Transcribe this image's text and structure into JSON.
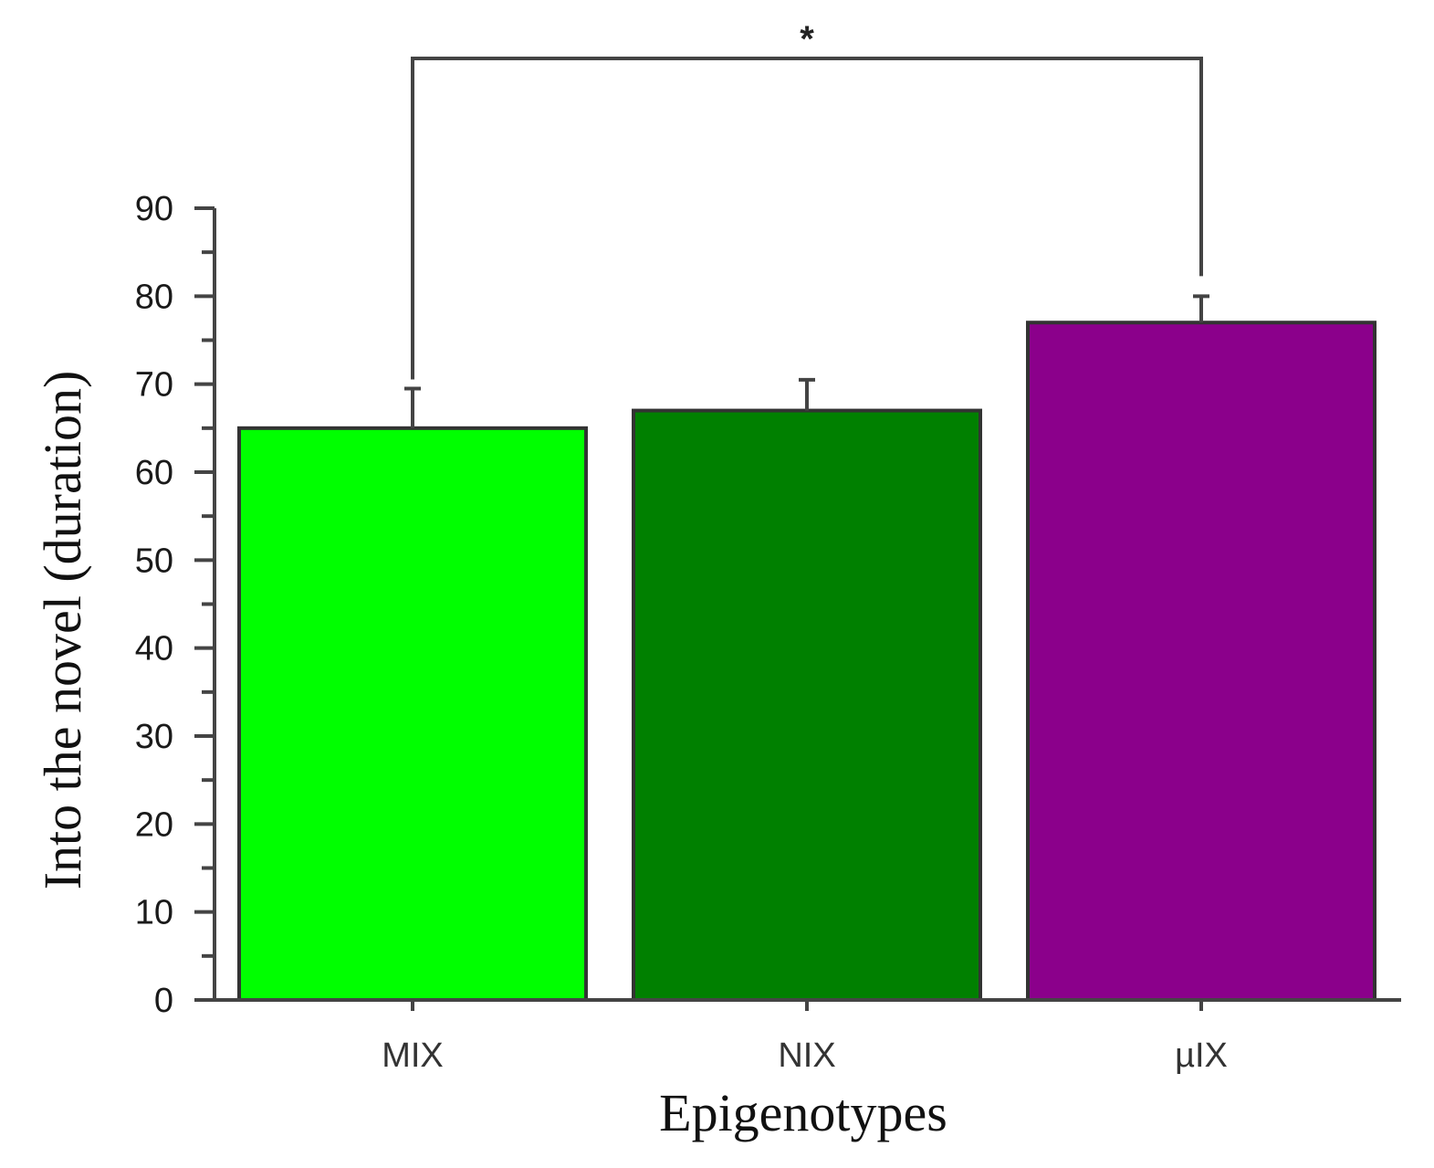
{
  "chart_data": {
    "type": "bar",
    "categories": [
      "MIX",
      "NIX",
      "µIX"
    ],
    "values": [
      65,
      67,
      77
    ],
    "error_upper": [
      69.5,
      70.5,
      80
    ],
    "colors": [
      "#00ff00",
      "#008000",
      "#8b008b"
    ],
    "xlabel": "Epigenotypes",
    "ylabel": "Into the novel (duration)",
    "ylim": [
      0,
      90
    ],
    "yticks": [
      "0",
      "10",
      "20",
      "30",
      "40",
      "50",
      "60",
      "70",
      "80",
      "90"
    ],
    "grid": false,
    "significance": {
      "from": "MIX",
      "to": "µIX",
      "label": "*"
    }
  }
}
